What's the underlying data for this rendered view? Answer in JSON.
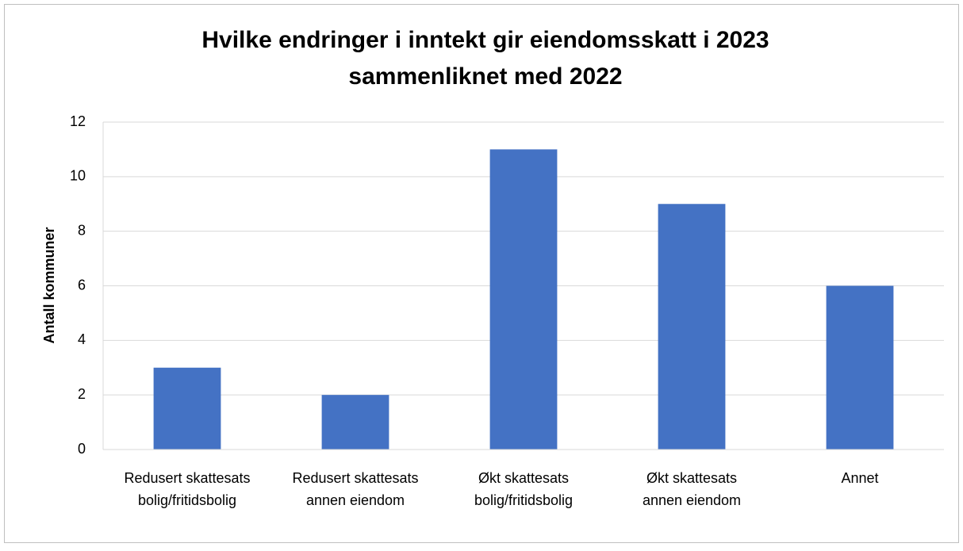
{
  "chart_data": {
    "type": "bar",
    "title": [
      "Hvilke endringer i inntekt gir eiendomsskatt i 2023",
      "sammenliknet med 2022"
    ],
    "y_label": "Antall kommuner",
    "categories": [
      "Redusert skattesats bolig/fritidsbolig",
      "Redusert skattesats annen eiendom",
      "Økt skattesats bolig/fritidsbolig",
      "Økt skattesats annen eiendom",
      "Annet"
    ],
    "values": [
      3,
      2,
      11,
      9,
      6
    ],
    "color": "#4472c4",
    "ylim": [
      0,
      12
    ],
    "yticks": [
      0,
      2,
      4,
      6,
      8,
      10,
      12
    ],
    "grid": true
  }
}
